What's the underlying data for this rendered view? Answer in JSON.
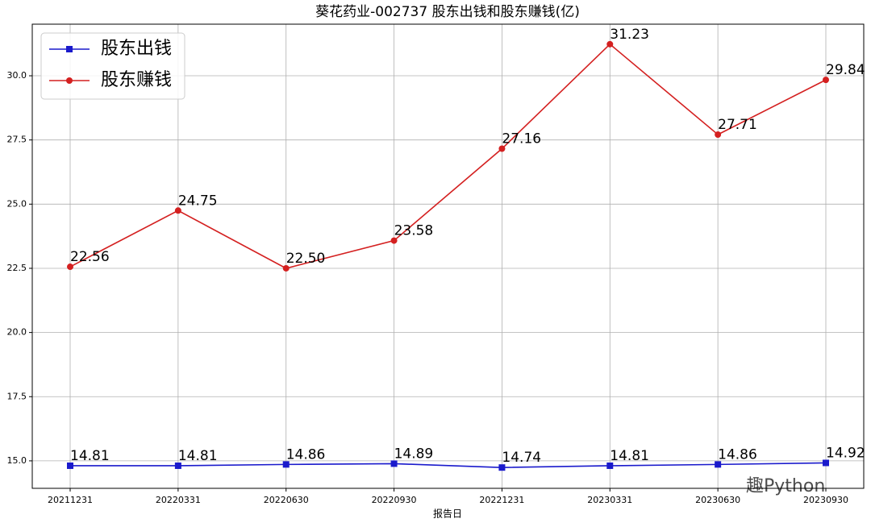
{
  "chart_data": {
    "type": "line",
    "title": "葵花药业-002737 股东出钱和股东赚钱(亿)",
    "x_label": "报告日",
    "categories": [
      "20211231",
      "20220331",
      "20220630",
      "20220930",
      "20221231",
      "20230331",
      "20230630",
      "20230930"
    ],
    "series": [
      {
        "name": "股东出钱",
        "color": "#1a1acc",
        "marker": "square",
        "values": [
          14.81,
          14.81,
          14.86,
          14.89,
          14.74,
          14.81,
          14.86,
          14.92
        ],
        "value_labels": [
          "14.81",
          "14.81",
          "14.86",
          "14.89",
          "14.74",
          "14.81",
          "14.86",
          "14.92"
        ]
      },
      {
        "name": "股东赚钱",
        "color": "#d42020",
        "marker": "circle",
        "values": [
          22.56,
          24.75,
          22.5,
          23.58,
          27.16,
          31.23,
          27.71,
          29.84
        ],
        "value_labels": [
          "22.56",
          "24.75",
          "22.50",
          "23.58",
          "27.16",
          "31.23",
          "27.71",
          "29.84"
        ]
      }
    ],
    "ylim": [
      13.93,
      32.01
    ],
    "yticks": [
      {
        "value": 15,
        "label": "15.0"
      },
      17.5,
      {
        "value": 20,
        "label": "20.0"
      },
      22.5,
      {
        "value": 25,
        "label": "25.0"
      },
      27.5,
      {
        "value": 30,
        "label": "30.0"
      }
    ],
    "grid": true,
    "legend": "upper-left",
    "watermark": "趣Python"
  }
}
